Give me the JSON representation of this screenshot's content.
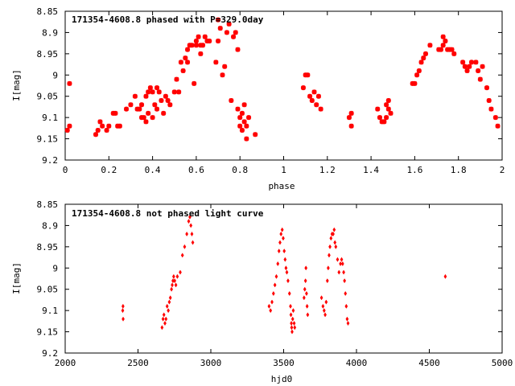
{
  "chart_data": [
    {
      "type": "scatter",
      "title": "171354-4608.8 phased with P=329.0day",
      "xlabel": "phase",
      "ylabel": "I[mag]",
      "xlim": [
        0,
        2
      ],
      "ylim": [
        8.85,
        9.2
      ],
      "y_inverted": true,
      "xticks": [
        "0",
        "0.2",
        "0.4",
        "0.6",
        "0.8",
        "1",
        "1.2",
        "1.4",
        "1.6",
        "1.8",
        "2"
      ],
      "yticks": [
        "8.85",
        "8.9",
        "8.95",
        "9",
        "9.05",
        "9.1",
        "9.15",
        "9.2"
      ],
      "grid": false,
      "marker_color": "#ff0000",
      "points": [
        [
          0.02,
          9.02
        ],
        [
          0.01,
          9.13
        ],
        [
          0.02,
          9.12
        ],
        [
          0.14,
          9.14
        ],
        [
          0.15,
          9.13
        ],
        [
          0.16,
          9.11
        ],
        [
          0.17,
          9.12
        ],
        [
          0.19,
          9.13
        ],
        [
          0.2,
          9.12
        ],
        [
          0.22,
          9.09
        ],
        [
          0.23,
          9.09
        ],
        [
          0.24,
          9.12
        ],
        [
          0.25,
          9.12
        ],
        [
          0.28,
          9.08
        ],
        [
          0.3,
          9.07
        ],
        [
          0.32,
          9.05
        ],
        [
          0.33,
          9.08
        ],
        [
          0.34,
          9.08
        ],
        [
          0.35,
          9.07
        ],
        [
          0.35,
          9.1
        ],
        [
          0.36,
          9.1
        ],
        [
          0.37,
          9.05
        ],
        [
          0.37,
          9.11
        ],
        [
          0.38,
          9.04
        ],
        [
          0.38,
          9.09
        ],
        [
          0.39,
          9.03
        ],
        [
          0.4,
          9.04
        ],
        [
          0.4,
          9.1
        ],
        [
          0.41,
          9.07
        ],
        [
          0.42,
          9.08
        ],
        [
          0.42,
          9.03
        ],
        [
          0.43,
          9.04
        ],
        [
          0.44,
          9.06
        ],
        [
          0.45,
          9.09
        ],
        [
          0.46,
          9.05
        ],
        [
          0.47,
          9.06
        ],
        [
          0.48,
          9.07
        ],
        [
          0.5,
          9.04
        ],
        [
          0.51,
          9.01
        ],
        [
          0.52,
          9.04
        ],
        [
          0.53,
          8.97
        ],
        [
          0.54,
          8.99
        ],
        [
          0.55,
          8.96
        ],
        [
          0.56,
          8.94
        ],
        [
          0.56,
          8.97
        ],
        [
          0.57,
          8.93
        ],
        [
          0.58,
          8.93
        ],
        [
          0.59,
          9.02
        ],
        [
          0.6,
          8.93
        ],
        [
          0.6,
          8.92
        ],
        [
          0.61,
          8.91
        ],
        [
          0.62,
          8.93
        ],
        [
          0.62,
          8.95
        ],
        [
          0.63,
          8.93
        ],
        [
          0.64,
          8.91
        ],
        [
          0.65,
          8.92
        ],
        [
          0.66,
          8.92
        ],
        [
          0.69,
          8.97
        ],
        [
          0.7,
          8.92
        ],
        [
          0.7,
          8.87
        ],
        [
          0.71,
          8.89
        ],
        [
          0.72,
          9.0
        ],
        [
          0.73,
          8.98
        ],
        [
          0.74,
          8.9
        ],
        [
          0.75,
          8.88
        ],
        [
          0.76,
          9.06
        ],
        [
          0.77,
          8.91
        ],
        [
          0.78,
          8.9
        ],
        [
          0.79,
          8.94
        ],
        [
          0.79,
          9.08
        ],
        [
          0.8,
          9.1
        ],
        [
          0.8,
          9.12
        ],
        [
          0.81,
          9.13
        ],
        [
          0.81,
          9.09
        ],
        [
          0.82,
          9.11
        ],
        [
          0.82,
          9.07
        ],
        [
          0.83,
          9.12
        ],
        [
          0.83,
          9.15
        ],
        [
          0.84,
          9.1
        ],
        [
          0.87,
          9.14
        ],
        [
          1.09,
          9.03
        ],
        [
          1.1,
          9.0
        ],
        [
          1.11,
          9.0
        ],
        [
          1.12,
          9.05
        ],
        [
          1.13,
          9.06
        ],
        [
          1.14,
          9.04
        ],
        [
          1.15,
          9.07
        ],
        [
          1.16,
          9.05
        ],
        [
          1.17,
          9.08
        ],
        [
          1.3,
          9.1
        ],
        [
          1.31,
          9.12
        ],
        [
          1.31,
          9.09
        ],
        [
          1.43,
          9.08
        ],
        [
          1.44,
          9.1
        ],
        [
          1.45,
          9.11
        ],
        [
          1.46,
          9.11
        ],
        [
          1.47,
          9.07
        ],
        [
          1.47,
          9.1
        ],
        [
          1.48,
          9.06
        ],
        [
          1.48,
          9.08
        ],
        [
          1.49,
          9.09
        ],
        [
          1.59,
          9.02
        ],
        [
          1.6,
          9.02
        ],
        [
          1.61,
          9.0
        ],
        [
          1.62,
          8.99
        ],
        [
          1.63,
          8.97
        ],
        [
          1.64,
          8.96
        ],
        [
          1.65,
          8.95
        ],
        [
          1.67,
          8.93
        ],
        [
          1.71,
          8.94
        ],
        [
          1.72,
          8.94
        ],
        [
          1.73,
          8.93
        ],
        [
          1.73,
          8.91
        ],
        [
          1.74,
          8.92
        ],
        [
          1.75,
          8.94
        ],
        [
          1.76,
          8.94
        ],
        [
          1.77,
          8.94
        ],
        [
          1.78,
          8.95
        ],
        [
          1.82,
          8.97
        ],
        [
          1.83,
          8.98
        ],
        [
          1.84,
          8.99
        ],
        [
          1.85,
          8.98
        ],
        [
          1.86,
          8.97
        ],
        [
          1.88,
          8.97
        ],
        [
          1.89,
          8.99
        ],
        [
          1.9,
          9.01
        ],
        [
          1.91,
          8.98
        ],
        [
          1.93,
          9.03
        ],
        [
          1.94,
          9.06
        ],
        [
          1.95,
          9.08
        ],
        [
          1.97,
          9.1
        ],
        [
          1.98,
          9.12
        ]
      ]
    },
    {
      "type": "scatter",
      "title": "171354-4608.8 not phased light curve",
      "xlabel": "hjd0",
      "ylabel": "I[mag]",
      "xlim": [
        2000,
        5000
      ],
      "ylim": [
        8.85,
        9.2
      ],
      "y_inverted": true,
      "xticks": [
        "2000",
        "2500",
        "3000",
        "3500",
        "4000",
        "4500",
        "5000"
      ],
      "yticks": [
        "8.85",
        "8.9",
        "8.95",
        "9",
        "9.05",
        "9.1",
        "9.15",
        "9.2"
      ],
      "grid": false,
      "marker_color": "#ff0000",
      "points": [
        [
          2395,
          9.1
        ],
        [
          2397,
          9.09
        ],
        [
          2398,
          9.12
        ],
        [
          2665,
          9.14
        ],
        [
          2672,
          9.12
        ],
        [
          2678,
          9.11
        ],
        [
          2685,
          9.13
        ],
        [
          2692,
          9.12
        ],
        [
          2700,
          9.09
        ],
        [
          2708,
          9.1
        ],
        [
          2715,
          9.08
        ],
        [
          2722,
          9.07
        ],
        [
          2730,
          9.05
        ],
        [
          2735,
          9.04
        ],
        [
          2740,
          9.03
        ],
        [
          2745,
          9.02
        ],
        [
          2752,
          9.03
        ],
        [
          2760,
          9.04
        ],
        [
          2770,
          9.02
        ],
        [
          2790,
          9.01
        ],
        [
          2805,
          8.97
        ],
        [
          2820,
          8.95
        ],
        [
          2835,
          8.92
        ],
        [
          2848,
          8.89
        ],
        [
          2856,
          8.88
        ],
        [
          2863,
          8.9
        ],
        [
          2870,
          8.92
        ],
        [
          2876,
          8.94
        ],
        [
          3400,
          9.09
        ],
        [
          3410,
          9.1
        ],
        [
          3420,
          9.08
        ],
        [
          3430,
          9.06
        ],
        [
          3440,
          9.04
        ],
        [
          3450,
          9.02
        ],
        [
          3460,
          8.99
        ],
        [
          3468,
          8.96
        ],
        [
          3475,
          8.94
        ],
        [
          3482,
          8.92
        ],
        [
          3490,
          8.91
        ],
        [
          3497,
          8.93
        ],
        [
          3504,
          8.96
        ],
        [
          3510,
          8.98
        ],
        [
          3516,
          9.0
        ],
        [
          3522,
          9.01
        ],
        [
          3530,
          9.03
        ],
        [
          3540,
          9.06
        ],
        [
          3547,
          9.09
        ],
        [
          3550,
          9.11
        ],
        [
          3553,
          9.13
        ],
        [
          3555,
          9.14
        ],
        [
          3558,
          9.15
        ],
        [
          3562,
          9.12
        ],
        [
          3566,
          9.1
        ],
        [
          3572,
          9.13
        ],
        [
          3576,
          9.14
        ],
        [
          3640,
          9.07
        ],
        [
          3645,
          9.05
        ],
        [
          3650,
          9.03
        ],
        [
          3653,
          9.0
        ],
        [
          3657,
          9.06
        ],
        [
          3661,
          9.09
        ],
        [
          3665,
          9.11
        ],
        [
          3760,
          9.07
        ],
        [
          3770,
          9.09
        ],
        [
          3778,
          9.1
        ],
        [
          3785,
          9.11
        ],
        [
          3792,
          9.08
        ],
        [
          3800,
          9.03
        ],
        [
          3806,
          9.0
        ],
        [
          3812,
          8.97
        ],
        [
          3818,
          8.95
        ],
        [
          3825,
          8.93
        ],
        [
          3832,
          8.92
        ],
        [
          3840,
          8.92
        ],
        [
          3847,
          8.91
        ],
        [
          3852,
          8.94
        ],
        [
          3858,
          8.95
        ],
        [
          3870,
          8.98
        ],
        [
          3880,
          9.01
        ],
        [
          3890,
          8.99
        ],
        [
          3898,
          8.98
        ],
        [
          3905,
          8.99
        ],
        [
          3912,
          9.01
        ],
        [
          3918,
          9.03
        ],
        [
          3924,
          9.06
        ],
        [
          3930,
          9.09
        ],
        [
          3936,
          9.12
        ],
        [
          3942,
          9.13
        ],
        [
          4610,
          9.02
        ]
      ]
    }
  ]
}
